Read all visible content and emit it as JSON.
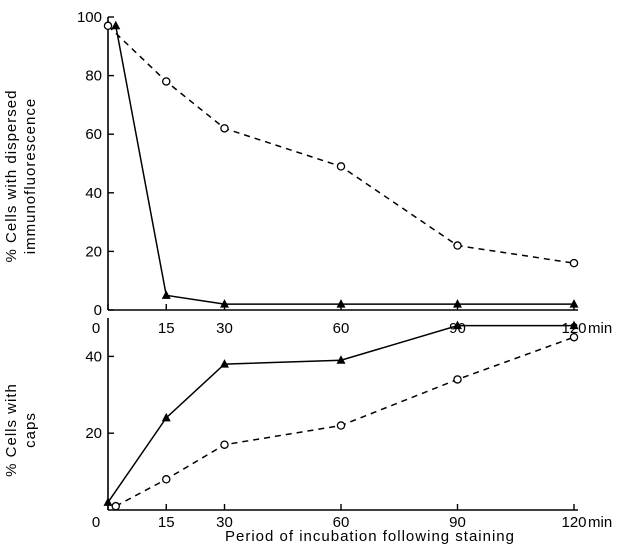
{
  "chart_data": [
    {
      "type": "line",
      "ylabel": [
        "% Cells with dispersed",
        "immunofluorescence"
      ],
      "x_ticks": [
        0,
        15,
        30,
        60,
        90,
        120
      ],
      "x_unit": "min",
      "y_ticks": [
        0,
        20,
        40,
        60,
        80,
        100
      ],
      "xlim": [
        0,
        120
      ],
      "ylim": [
        0,
        100
      ],
      "series": [
        {
          "style": "solid",
          "marker": "filled-triangle",
          "x": [
            2,
            15,
            30,
            60,
            90,
            120
          ],
          "y": [
            97,
            5,
            2,
            2,
            2,
            2
          ]
        },
        {
          "style": "dashed",
          "marker": "open-circle",
          "x": [
            0,
            15,
            30,
            60,
            90,
            120
          ],
          "y": [
            97,
            78,
            62,
            49,
            22,
            16
          ]
        }
      ]
    },
    {
      "type": "line",
      "ylabel": [
        "% Cells with",
        "caps"
      ],
      "x_ticks": [
        0,
        15,
        30,
        60,
        90,
        120
      ],
      "x_unit": "min",
      "y_ticks": [
        20,
        40
      ],
      "xlim": [
        0,
        120
      ],
      "ylim": [
        0,
        50
      ],
      "series": [
        {
          "style": "solid",
          "marker": "filled-triangle",
          "x": [
            0,
            15,
            30,
            60,
            90,
            120
          ],
          "y": [
            2,
            24,
            38,
            39,
            48,
            48
          ]
        },
        {
          "style": "dashed",
          "marker": "open-circle",
          "x": [
            2,
            15,
            30,
            60,
            90,
            120
          ],
          "y": [
            1,
            8,
            17,
            22,
            34,
            45
          ]
        }
      ]
    }
  ],
  "xlabel": "Period of incubation following staining",
  "colors": {
    "ink": "#000000",
    "background": "#ffffff"
  }
}
